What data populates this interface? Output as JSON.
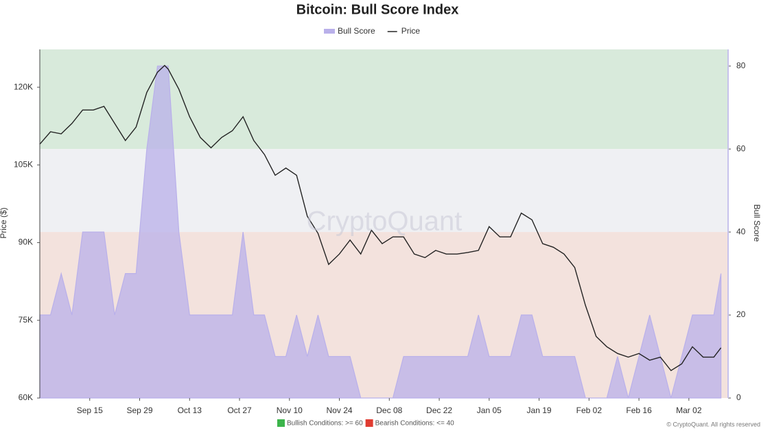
{
  "chart_data": {
    "type": "area-line",
    "title": "Bitcoin: Bull Score Index",
    "y_label": "Price ($)",
    "y2_label": "Bull Score",
    "watermark": "CryptoQuant",
    "copyright": "© CryptoQuant. All rights reserved",
    "conditions": [
      {
        "label": "Bullish Conditions: >= 60",
        "color": "#3cb44b",
        "from": 60,
        "to": 84
      },
      {
        "label": "Bearish Conditions: <= 40",
        "color": "#e03c31",
        "from": 0,
        "to": 40
      }
    ],
    "bands": [
      {
        "from": 60,
        "to": 84,
        "color": "#d8eadb"
      },
      {
        "from": 40,
        "to": 60,
        "color": "#eff0f3"
      },
      {
        "from": 0,
        "to": 40,
        "color": "#f3e2dd"
      }
    ],
    "xlim": [
      0,
      193
    ],
    "xticks": [
      {
        "value": 14,
        "label": "Sep 15"
      },
      {
        "value": 28,
        "label": "Sep 29"
      },
      {
        "value": 42,
        "label": "Oct 13"
      },
      {
        "value": 56,
        "label": "Oct 27"
      },
      {
        "value": 70,
        "label": "Nov 10"
      },
      {
        "value": 84,
        "label": "Nov 24"
      },
      {
        "value": 98,
        "label": "Dec 08"
      },
      {
        "value": 112,
        "label": "Dec 22"
      },
      {
        "value": 126,
        "label": "Jan 05"
      },
      {
        "value": 140,
        "label": "Jan 19"
      },
      {
        "value": 154,
        "label": "Feb 02"
      },
      {
        "value": 168,
        "label": "Feb 16"
      },
      {
        "value": 182,
        "label": "Mar 02"
      }
    ],
    "ylim": [
      60000,
      127300
    ],
    "yticks": [
      {
        "value": 60000,
        "label": "60K"
      },
      {
        "value": 75000,
        "label": "75K"
      },
      {
        "value": 90000,
        "label": "90K"
      },
      {
        "value": 105000,
        "label": "105K"
      },
      {
        "value": 120000,
        "label": "120K"
      }
    ],
    "y2lim": [
      0,
      84
    ],
    "y2ticks": [
      0,
      20,
      40,
      60,
      80
    ],
    "x": [
      0,
      3,
      6,
      9,
      12,
      15,
      18,
      21,
      24,
      27,
      30,
      33,
      35,
      36,
      39,
      42,
      45,
      48,
      51,
      54,
      57,
      60,
      63,
      66,
      69,
      72,
      75,
      78,
      81,
      84,
      87,
      90,
      93,
      96,
      99,
      102,
      105,
      108,
      111,
      114,
      117,
      120,
      123,
      126,
      129,
      132,
      135,
      138,
      141,
      144,
      147,
      150,
      153,
      156,
      159,
      162,
      165,
      168,
      171,
      174,
      177,
      180,
      183,
      186,
      189,
      191
    ],
    "series": [
      {
        "name": "Bull Score",
        "color": "#b9b0ea",
        "axis": "y2",
        "values": [
          20,
          20,
          30,
          20,
          40,
          40,
          40,
          20,
          30,
          30,
          60,
          80,
          80,
          80,
          40,
          20,
          20,
          20,
          20,
          20,
          40,
          20,
          20,
          10,
          10,
          20,
          10,
          20,
          10,
          10,
          10,
          0,
          0,
          0,
          0,
          10,
          10,
          10,
          10,
          10,
          10,
          10,
          20,
          10,
          10,
          10,
          20,
          20,
          10,
          10,
          10,
          10,
          0,
          0,
          0,
          10,
          0,
          10,
          20,
          10,
          0,
          10,
          20,
          20,
          20,
          30
        ]
      },
      {
        "name": "Price",
        "color": "#222222",
        "values": [
          109000,
          111400,
          111000,
          113000,
          115600,
          115600,
          116300,
          113000,
          109700,
          112300,
          119000,
          122900,
          124200,
          123500,
          119600,
          114300,
          110300,
          108300,
          110300,
          111600,
          114300,
          109700,
          107000,
          103000,
          104400,
          103000,
          95100,
          91800,
          85800,
          87800,
          90500,
          87800,
          92400,
          89800,
          91100,
          91100,
          87800,
          87100,
          88500,
          87800,
          87800,
          88100,
          88500,
          93100,
          91100,
          91100,
          95700,
          94400,
          89800,
          89100,
          87800,
          85200,
          77900,
          71900,
          69900,
          68600,
          67900,
          68600,
          67300,
          67900,
          65300,
          66600,
          69900,
          67900,
          67900,
          69700
        ]
      }
    ]
  }
}
